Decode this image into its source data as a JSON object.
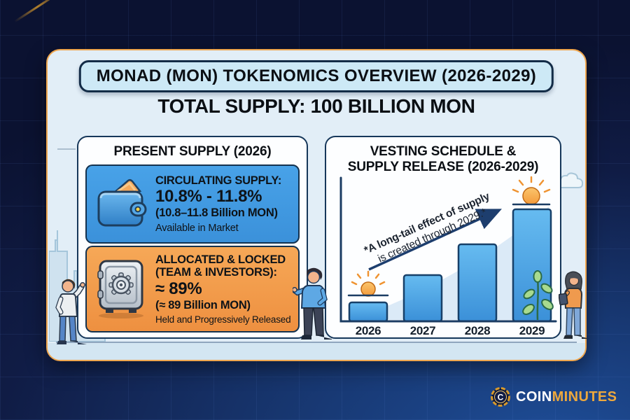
{
  "header": {
    "title": "MONAD (MON) TOKENOMICS OVERVIEW (2026-2029)",
    "total_supply": "TOTAL SUPPLY: 100 BILLION MON"
  },
  "present": {
    "title": "PRESENT SUPPLY (2026)",
    "circulating": {
      "label": "CIRCULATING SUPPLY:",
      "range_pct": "10.8% - 11.8%",
      "range_mon": "(10.8–11.8 Billion MON)",
      "note": "Available in Market",
      "icon": "wallet-icon",
      "bg_color": "#3f9ae2"
    },
    "locked": {
      "label_line1": "ALLOCATED & LOCKED",
      "label_line2": "(TEAM & INVESTORS):",
      "value_pct": "≈ 89%",
      "value_mon": "(≈ 89 Billion MON)",
      "note": "Held and Progressively Released",
      "icon": "safe-icon",
      "bg_color": "#f19a4a"
    }
  },
  "vesting": {
    "title_line1": "VESTING SCHEDULE &",
    "title_line2": "SUPPLY RELEASE (2026-2029)",
    "annotation_line1": "*A long-tail effect of supply",
    "annotation_line2": "is created through 2029.*"
  },
  "chart_data": {
    "type": "bar",
    "title": "Vesting Schedule & Supply Release (2026-2029)",
    "categories": [
      "2026",
      "2027",
      "2028",
      "2029"
    ],
    "values": [
      17,
      41,
      69,
      100
    ],
    "values_unit": "relative bar height, % of 2029 bar (no numeric y-axis shown)",
    "annotation": "*A long-tail effect of supply is created through 2029.*",
    "trend_arrow": "ascending diagonal arrow from 2026 toward 2029",
    "decorations": [
      "sunrise-icon above 2026 bar",
      "sun-icon above 2029 bar",
      "plant-icon beside 2029 bar"
    ],
    "grid": false,
    "xlabel": "",
    "ylabel": "",
    "legend": "none"
  },
  "branding": {
    "coin": "COIN",
    "minutes": "MINUTES",
    "icon_letter": "C",
    "icon": "coinminutes-logo"
  },
  "colors": {
    "background": "#101c45",
    "card": "#e2eef7",
    "card_border": "#efa64e",
    "circulating_box": "#3f9ae2",
    "locked_box": "#f19a4a",
    "bar_fill_top": "#66bbf0",
    "bar_fill_bottom": "#3b90d8",
    "arrow": "#1d3e6e",
    "brand_gold": "#eda83d"
  },
  "icons": {
    "wallet": "wallet-icon",
    "safe": "safe-icon",
    "sun_2026": "sunrise-icon",
    "sun_2029": "sun-icon",
    "plant": "plant-icon",
    "skyline": "city-skyline",
    "cloud": "cloud-icon",
    "people": [
      "man-pointing-left",
      "man-presenting-center",
      "woman-clipboard-right"
    ]
  }
}
